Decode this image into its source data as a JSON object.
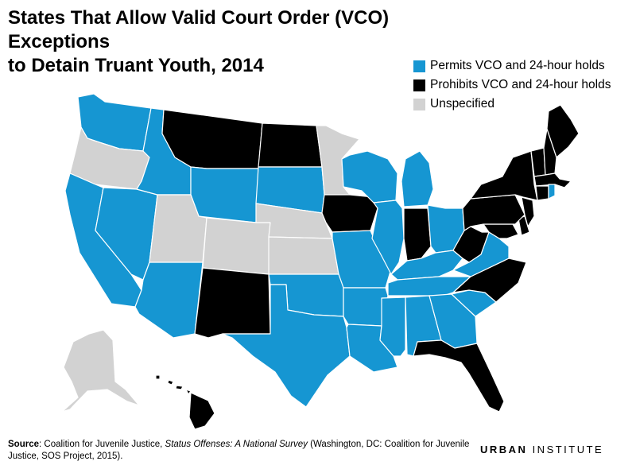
{
  "header": {
    "title_line1": "States That Allow Valid Court Order (VCO) Exceptions",
    "title_line2": "to Detain Truant Youth, 2014"
  },
  "colors": {
    "permits": "#1696d2",
    "prohibits": "#000000",
    "unspecified": "#d2d2d2"
  },
  "legend": {
    "items": [
      {
        "key": "permits",
        "label": "Permits VCO and 24-hour holds",
        "color": "#1696d2"
      },
      {
        "key": "prohibits",
        "label": "Prohibits VCO and 24-hour holds",
        "color": "#000000"
      },
      {
        "key": "unspecified",
        "label": "Unspecified",
        "color": "#d2d2d2"
      }
    ]
  },
  "map_data": {
    "states": [
      {
        "name": "Washington",
        "category": "permits"
      },
      {
        "name": "Oregon",
        "category": "unspecified"
      },
      {
        "name": "California",
        "category": "permits"
      },
      {
        "name": "Nevada",
        "category": "permits"
      },
      {
        "name": "Idaho",
        "category": "permits"
      },
      {
        "name": "Montana",
        "category": "prohibits"
      },
      {
        "name": "Wyoming",
        "category": "permits"
      },
      {
        "name": "Utah",
        "category": "unspecified"
      },
      {
        "name": "Colorado",
        "category": "unspecified"
      },
      {
        "name": "Arizona",
        "category": "permits"
      },
      {
        "name": "New Mexico",
        "category": "prohibits"
      },
      {
        "name": "North Dakota",
        "category": "prohibits"
      },
      {
        "name": "South Dakota",
        "category": "permits"
      },
      {
        "name": "Nebraska",
        "category": "unspecified"
      },
      {
        "name": "Kansas",
        "category": "unspecified"
      },
      {
        "name": "Oklahoma",
        "category": "permits"
      },
      {
        "name": "Texas",
        "category": "permits"
      },
      {
        "name": "Minnesota",
        "category": "unspecified"
      },
      {
        "name": "Iowa",
        "category": "prohibits"
      },
      {
        "name": "Missouri",
        "category": "permits"
      },
      {
        "name": "Arkansas",
        "category": "permits"
      },
      {
        "name": "Louisiana",
        "category": "permits"
      },
      {
        "name": "Wisconsin",
        "category": "permits"
      },
      {
        "name": "Illinois",
        "category": "permits"
      },
      {
        "name": "Michigan",
        "category": "permits"
      },
      {
        "name": "Indiana",
        "category": "prohibits"
      },
      {
        "name": "Ohio",
        "category": "permits"
      },
      {
        "name": "Kentucky",
        "category": "permits"
      },
      {
        "name": "Tennessee",
        "category": "permits"
      },
      {
        "name": "Mississippi",
        "category": "permits"
      },
      {
        "name": "Alabama",
        "category": "permits"
      },
      {
        "name": "Georgia",
        "category": "permits"
      },
      {
        "name": "Florida",
        "category": "prohibits"
      },
      {
        "name": "South Carolina",
        "category": "permits"
      },
      {
        "name": "North Carolina",
        "category": "prohibits"
      },
      {
        "name": "Virginia",
        "category": "permits"
      },
      {
        "name": "West Virginia",
        "category": "prohibits"
      },
      {
        "name": "Maryland",
        "category": "prohibits"
      },
      {
        "name": "Delaware",
        "category": "prohibits"
      },
      {
        "name": "Pennsylvania",
        "category": "prohibits"
      },
      {
        "name": "New Jersey",
        "category": "prohibits"
      },
      {
        "name": "New York",
        "category": "prohibits"
      },
      {
        "name": "Connecticut",
        "category": "prohibits"
      },
      {
        "name": "Rhode Island",
        "category": "permits"
      },
      {
        "name": "Massachusetts",
        "category": "prohibits"
      },
      {
        "name": "Vermont",
        "category": "prohibits"
      },
      {
        "name": "New Hampshire",
        "category": "prohibits"
      },
      {
        "name": "Maine",
        "category": "prohibits"
      },
      {
        "name": "Alaska",
        "category": "unspecified"
      },
      {
        "name": "Hawaii",
        "category": "prohibits"
      }
    ]
  },
  "source": {
    "label": "Source",
    "text_before": ": Coalition for Juvenile Justice, ",
    "italic": "Status Offenses: A National Survey",
    "text_after": " (Washington, DC: Coalition for Juvenile Justice, SOS Project, 2015)."
  },
  "brand": {
    "part1": "URBAN",
    "part2": " INSTITUTE"
  }
}
